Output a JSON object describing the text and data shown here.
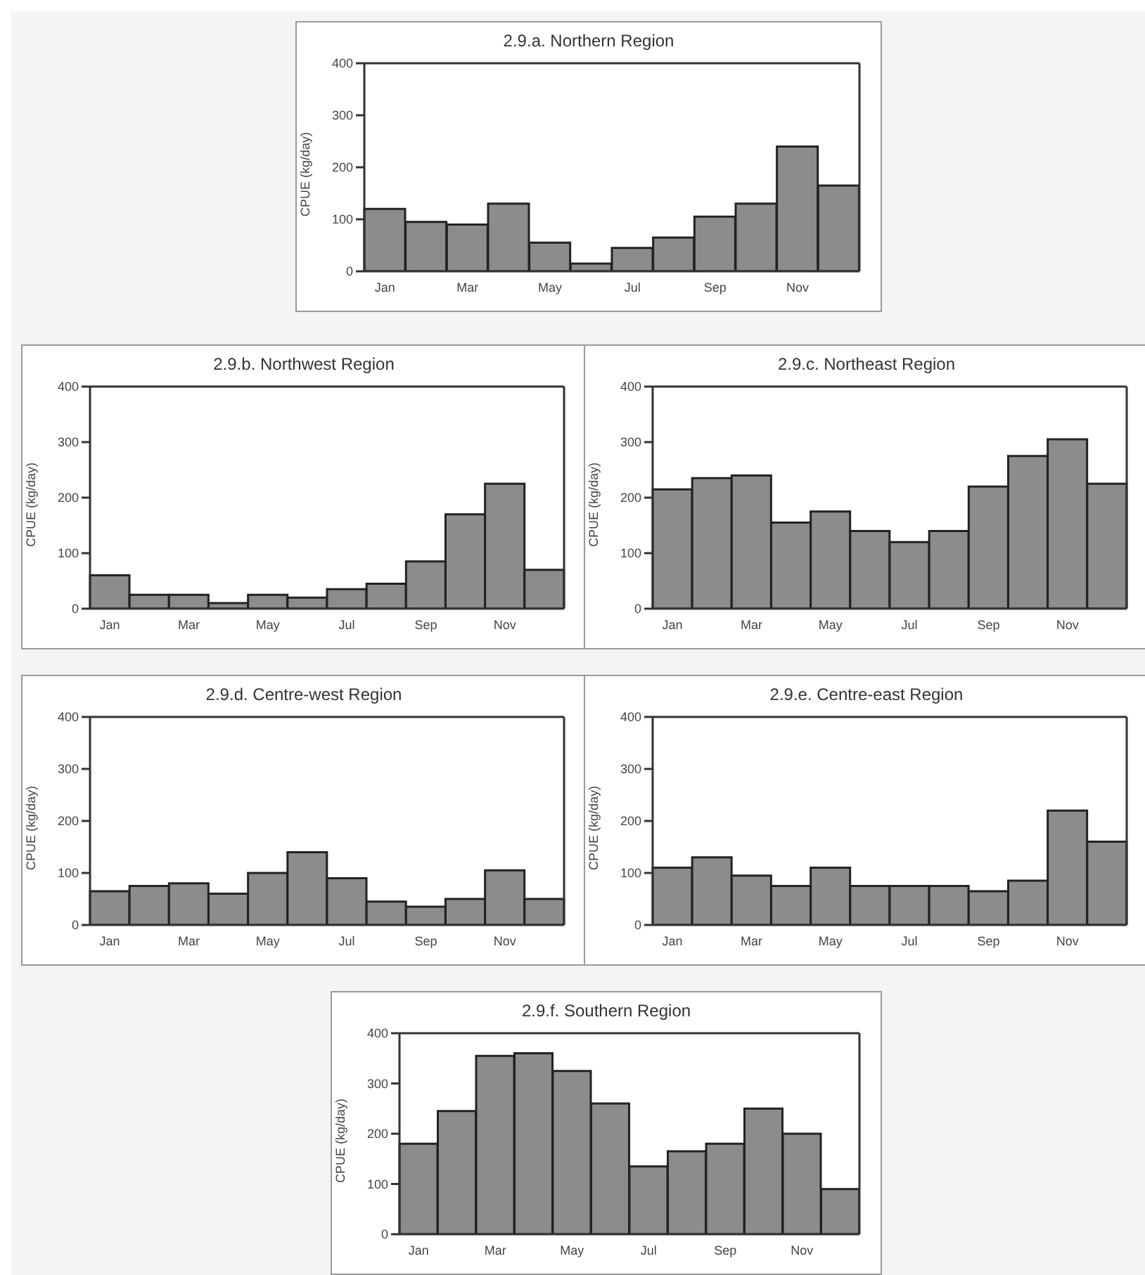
{
  "chart_data": [
    {
      "type": "bar",
      "title": "2.9.a. Northern Region",
      "ylabel": "CPUE (kg/day)",
      "categories": [
        "Jan",
        null,
        "Mar",
        null,
        "May",
        null,
        "Jul",
        null,
        "Sep",
        null,
        "Nov",
        null
      ],
      "values": [
        120,
        95,
        90,
        130,
        55,
        15,
        45,
        65,
        105,
        130,
        240,
        165
      ],
      "color": "#8c8c8c",
      "ylim": [
        0,
        400
      ],
      "yticks": [
        0,
        100,
        200,
        300,
        400
      ]
    },
    {
      "type": "bar",
      "title": "2.9.b. Northwest Region",
      "ylabel": "CPUE (kg/day)",
      "categories": [
        "Jan",
        null,
        "Mar",
        null,
        "May",
        null,
        "Jul",
        null,
        "Sep",
        null,
        "Nov",
        null
      ],
      "values": [
        60,
        25,
        25,
        10,
        25,
        20,
        35,
        45,
        85,
        170,
        225,
        70
      ],
      "color": "#8c8c8c",
      "ylim": [
        0,
        400
      ],
      "yticks": [
        0,
        100,
        200,
        300,
        400
      ]
    },
    {
      "type": "bar",
      "title": "2.9.c. Northeast Region",
      "ylabel": "CPUE (kg/day)",
      "categories": [
        "Jan",
        null,
        "Mar",
        null,
        "May",
        null,
        "Jul",
        null,
        "Sep",
        null,
        "Nov",
        null
      ],
      "values": [
        215,
        235,
        240,
        155,
        175,
        140,
        120,
        140,
        220,
        275,
        305,
        225
      ],
      "color": "#8c8c8c",
      "ylim": [
        0,
        400
      ],
      "yticks": [
        0,
        100,
        200,
        300,
        400
      ]
    },
    {
      "type": "bar",
      "title": "2.9.d. Centre-west Region",
      "ylabel": "CPUE (kg/day)",
      "categories": [
        "Jan",
        null,
        "Mar",
        null,
        "May",
        null,
        "Jul",
        null,
        "Sep",
        null,
        "Nov",
        null
      ],
      "values": [
        65,
        75,
        80,
        60,
        100,
        140,
        90,
        45,
        35,
        50,
        105,
        50
      ],
      "color": "#8c8c8c",
      "ylim": [
        0,
        400
      ],
      "yticks": [
        0,
        100,
        200,
        300,
        400
      ]
    },
    {
      "type": "bar",
      "title": "2.9.e. Centre-east Region",
      "ylabel": "CPUE (kg/day)",
      "categories": [
        "Jan",
        null,
        "Mar",
        null,
        "May",
        null,
        "Jul",
        null,
        "Sep",
        null,
        "Nov",
        null
      ],
      "values": [
        110,
        130,
        95,
        75,
        110,
        75,
        75,
        75,
        65,
        85,
        220,
        160
      ],
      "color": "#8c8c8c",
      "ylim": [
        0,
        400
      ],
      "yticks": [
        0,
        100,
        200,
        300,
        400
      ]
    },
    {
      "type": "bar",
      "title": "2.9.f. Southern Region",
      "ylabel": "CPUE (kg/day)",
      "categories": [
        "Jan",
        null,
        "Mar",
        null,
        "May",
        null,
        "Jul",
        null,
        "Sep",
        null,
        "Nov",
        null
      ],
      "values": [
        180,
        245,
        355,
        360,
        325,
        260,
        135,
        165,
        180,
        250,
        200,
        90
      ],
      "color": "#8c8c8c",
      "ylim": [
        0,
        400
      ],
      "yticks": [
        0,
        100,
        200,
        300,
        400
      ]
    }
  ]
}
